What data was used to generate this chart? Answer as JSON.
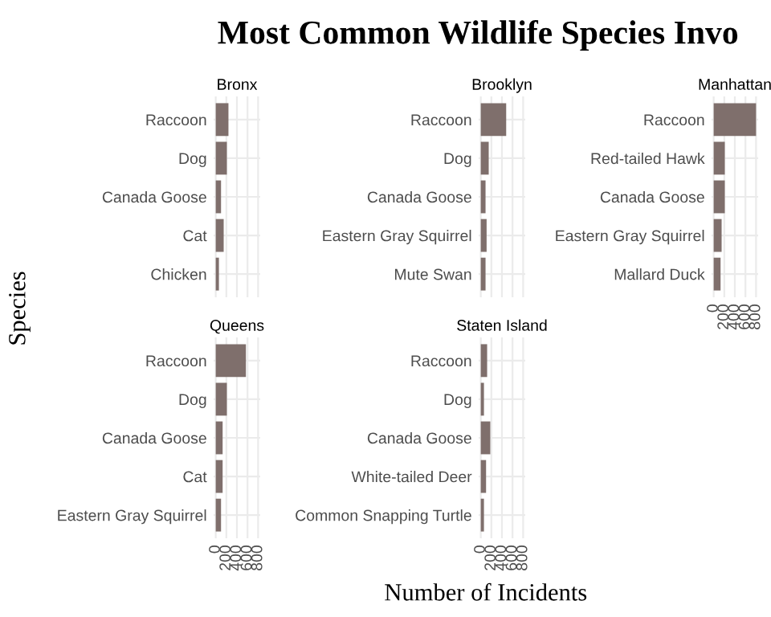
{
  "chart_data": [
    {
      "type": "bar",
      "orientation": "horizontal",
      "title": "Bronx",
      "annotations": [
        "Most Common Wildlife Species Invo"
      ],
      "ylabel": "Species",
      "categories": [
        "Raccoon",
        "Dog",
        "Canada Goose",
        "Cat",
        "Chicken"
      ],
      "values": [
        240,
        210,
        100,
        150,
        60
      ],
      "color": "#7f6f6c",
      "xlim": [
        -40,
        840
      ],
      "xticks": [
        0,
        200,
        400,
        600,
        800
      ],
      "grid": true,
      "tick_labels": "y"
    },
    {
      "type": "bar",
      "orientation": "horizontal",
      "title": "Brooklyn",
      "categories": [
        "Raccoon",
        "Dog",
        "Canada Goose",
        "Eastern Gray Squirrel",
        "Mute Swan"
      ],
      "values": [
        480,
        150,
        90,
        110,
        90
      ],
      "color": "#7f6f6c",
      "xlim": [
        -40,
        840
      ],
      "xticks": [
        0,
        200,
        400,
        600,
        800
      ],
      "grid": true,
      "tick_labels": "y"
    },
    {
      "type": "bar",
      "orientation": "horizontal",
      "title": "Manhattan",
      "categories": [
        "Raccoon",
        "Red-tailed Hawk",
        "Canada Goose",
        "Eastern Gray Squirrel",
        "Mallard Duck"
      ],
      "values": [
        800,
        210,
        210,
        150,
        130
      ],
      "color": "#7f6f6c",
      "xlim": [
        -40,
        840
      ],
      "xticks": [
        0,
        200,
        400,
        600,
        800
      ],
      "grid": true
    },
    {
      "type": "bar",
      "orientation": "horizontal",
      "title": "Queens",
      "categories": [
        "Raccoon",
        "Dog",
        "Canada Goose",
        "Cat",
        "Eastern Gray Squirrel"
      ],
      "values": [
        570,
        210,
        130,
        130,
        100
      ],
      "color": "#7f6f6c",
      "xlim": [
        -40,
        840
      ],
      "xticks": [
        0,
        200,
        400,
        600,
        800
      ],
      "grid": true
    },
    {
      "type": "bar",
      "orientation": "horizontal",
      "title": "Staten Island",
      "xlabel": "Number of Incidents",
      "categories": [
        "Raccoon",
        "Dog",
        "Canada Goose",
        "White-tailed Deer",
        "Common Snapping Turtle"
      ],
      "values": [
        120,
        60,
        180,
        100,
        60
      ],
      "color": "#7f6f6c",
      "xlim": [
        -40,
        840
      ],
      "xticks": [
        0,
        200,
        400,
        600,
        800
      ],
      "grid": true
    }
  ]
}
